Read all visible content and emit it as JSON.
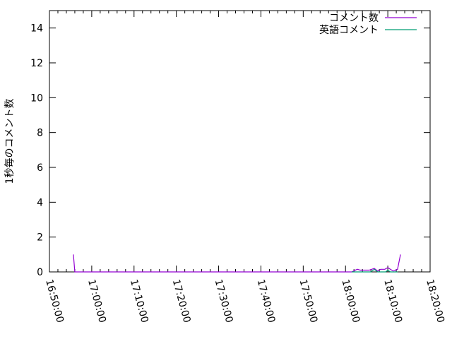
{
  "chart_data": {
    "type": "line",
    "title": "",
    "xlabel": "",
    "ylabel": "1秒毎のコメント数",
    "xlim": [
      "16:50:00",
      "18:20:00"
    ],
    "ylim": [
      0,
      15
    ],
    "xticks": [
      "16:50:00",
      "17:00:00",
      "17:10:00",
      "17:20:00",
      "17:30:00",
      "17:40:00",
      "17:50:00",
      "18:00:00",
      "18:10:00",
      "18:20:00"
    ],
    "yticks": [
      "0",
      "2",
      "4",
      "6",
      "8",
      "10",
      "12",
      "14"
    ],
    "grid": false,
    "legend": "top-right",
    "series": [
      {
        "name": "コメント数",
        "color": "#9400d3",
        "points": [
          [
            "16:55:40",
            1
          ],
          [
            "16:56:00",
            0
          ],
          [
            "18:01:28",
            0
          ],
          [
            "18:02:18",
            0.1
          ],
          [
            "18:02:48",
            0.15
          ],
          [
            "18:03:30",
            0.1
          ],
          [
            "18:05:36",
            0.1
          ],
          [
            "18:06:48",
            0.2
          ],
          [
            "18:07:36",
            0.05
          ],
          [
            "18:08:18",
            0.15
          ],
          [
            "18:09:18",
            0.15
          ],
          [
            "18:10:00",
            0.25
          ],
          [
            "18:10:36",
            0.15
          ],
          [
            "18:11:18",
            0.05
          ],
          [
            "18:12:18",
            0.15
          ],
          [
            "18:13:00",
            1
          ]
        ]
      },
      {
        "name": "英語コメント",
        "color": "#009e73",
        "points": [
          [
            "18:01:28",
            0
          ],
          [
            "18:06:00",
            0
          ],
          [
            "18:06:48",
            0.15
          ],
          [
            "18:07:36",
            0
          ],
          [
            "18:09:30",
            0
          ],
          [
            "18:10:00",
            0.1
          ],
          [
            "18:10:36",
            0
          ],
          [
            "18:12:18",
            0
          ]
        ]
      }
    ]
  }
}
